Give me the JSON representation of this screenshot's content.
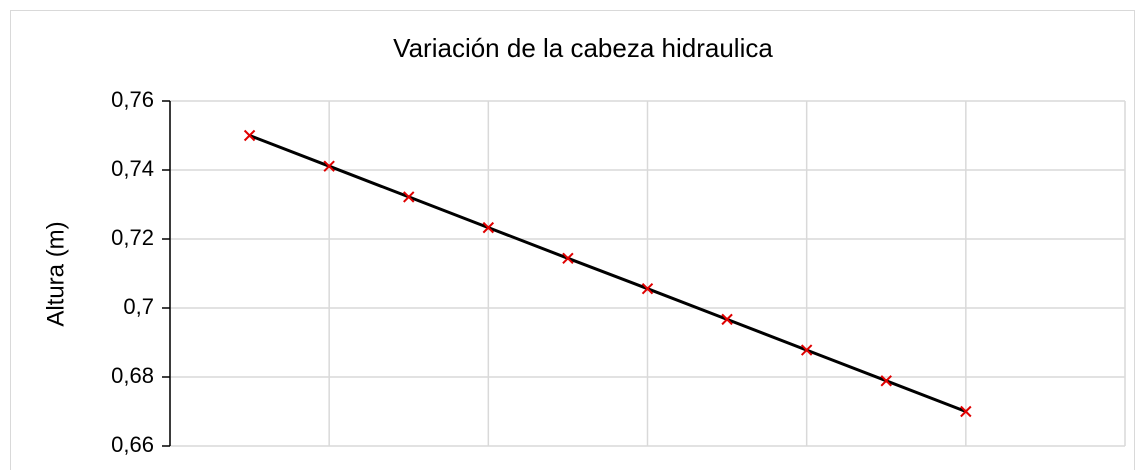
{
  "chart_data": {
    "type": "line",
    "title": "Variación de la cabeza hidraulica",
    "y_label": "Altura (m)",
    "x": [
      1,
      2,
      3,
      4,
      5,
      6,
      7,
      8,
      9,
      10
    ],
    "series": [
      {
        "color": "#000000",
        "marker_color": "#e00000",
        "values": [
          0.75,
          0.7411,
          0.7322,
          0.7233,
          0.7144,
          0.7056,
          0.6967,
          0.6878,
          0.6789,
          0.67
        ]
      }
    ],
    "xlim": [
      0,
      12
    ],
    "xticks": [
      0,
      2,
      4,
      6,
      8,
      10,
      12
    ],
    "ylim": [
      0.66,
      0.76
    ],
    "yticks": [
      {
        "value": 0.66,
        "label": "0,66"
      },
      {
        "value": 0.68,
        "label": "0,68"
      },
      {
        "value": 0.7,
        "label": "0,7"
      },
      {
        "value": 0.72,
        "label": "0,72"
      },
      {
        "value": 0.74,
        "label": "0,74"
      },
      {
        "value": 0.76,
        "label": "0,76"
      }
    ],
    "grid": true
  }
}
